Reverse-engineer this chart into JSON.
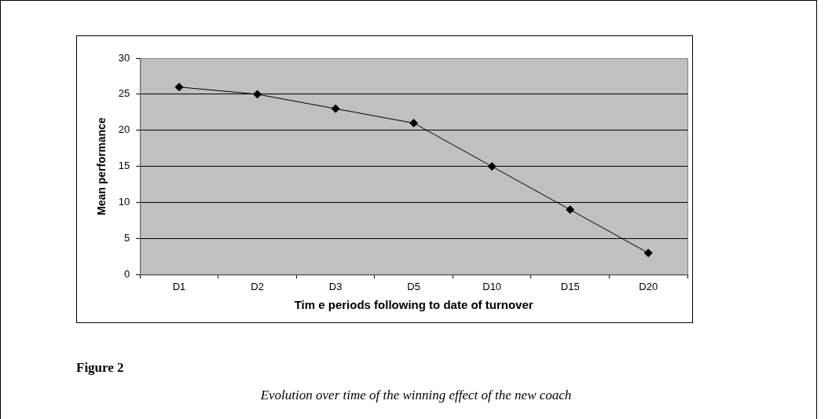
{
  "chart_data": {
    "type": "line",
    "xlabel": "Tim e periods following to date of turnover",
    "ylabel": "Mean performance",
    "categories": [
      "D1",
      "D2",
      "D3",
      "D5",
      "D10",
      "D15",
      "D20"
    ],
    "series": [
      {
        "color": "#000000",
        "values": [
          26,
          25,
          23,
          21,
          15,
          9,
          3
        ]
      }
    ],
    "ylim": [
      0,
      30
    ],
    "yticks": [
      0,
      5,
      10,
      15,
      20,
      25,
      30
    ],
    "grid": "y",
    "legend": false,
    "marker": "diamond",
    "line_style": "solid",
    "annotations": [
      "Figure 2",
      "Evolution over time of the winning effect of the new coach"
    ]
  }
}
